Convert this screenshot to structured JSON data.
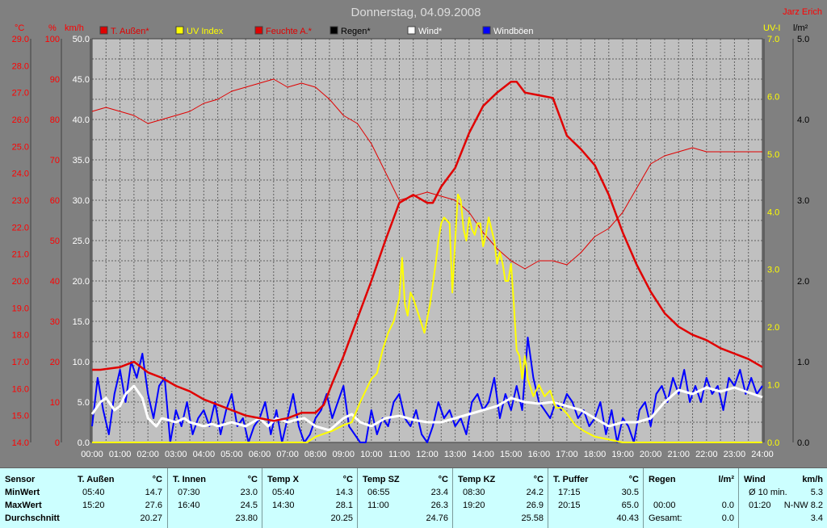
{
  "header": {
    "title": "Donnerstag, 04.09.2008",
    "author": "Jarz Erich"
  },
  "colors": {
    "background": "#808080",
    "plot_bg": "#c0c0c0",
    "temp": "#e00000",
    "uv": "#ffff00",
    "humidity": "#e00000",
    "wind": "#ffffff",
    "gust": "#0000ff",
    "rain": "#000000"
  },
  "axes": {
    "left_temp": {
      "unit": "°C",
      "ticks": [
        "29.0",
        "28.0",
        "27.0",
        "26.0",
        "25.0",
        "24.0",
        "23.0",
        "22.0",
        "21.0",
        "20.0",
        "19.0",
        "18.0",
        "17.0",
        "16.0",
        "15.0",
        "14.0"
      ]
    },
    "left_hum": {
      "unit": "%",
      "ticks": [
        "100",
        "90",
        "80",
        "70",
        "60",
        "50",
        "40",
        "30",
        "20",
        "10",
        "0"
      ]
    },
    "left_wind": {
      "unit": "km/h",
      "ticks": [
        "50.0",
        "45.0",
        "40.0",
        "35.0",
        "30.0",
        "25.0",
        "20.0",
        "15.0",
        "10.0",
        "5.0",
        "0.0"
      ]
    },
    "right_uv": {
      "unit": "UV-I",
      "ticks": [
        "7.0",
        "6.0",
        "5.0",
        "4.0",
        "3.0",
        "2.0",
        "1.0",
        "0.0"
      ]
    },
    "right_rain": {
      "unit": "l/m²",
      "ticks": [
        "5.0",
        "4.0",
        "3.0",
        "2.0",
        "1.0",
        "0.0"
      ]
    },
    "x_ticks": [
      "00:00",
      "01:00",
      "02:00",
      "03:00",
      "04:00",
      "05:00",
      "06:00",
      "07:00",
      "08:00",
      "09:00",
      "10:00",
      "11:00",
      "12:00",
      "13:00",
      "14:00",
      "15:00",
      "16:00",
      "17:00",
      "18:00",
      "19:00",
      "20:00",
      "21:00",
      "22:00",
      "23:00",
      "24:00"
    ]
  },
  "legend": [
    {
      "label": "T. Außen*",
      "color": "#e00000",
      "text_color": "#e00000"
    },
    {
      "label": "UV Index",
      "color": "#ffff00",
      "text_color": "#ffff00"
    },
    {
      "label": "Feuchte A.*",
      "color": "#e00000",
      "text_color": "#e00000"
    },
    {
      "label": "Regen*",
      "color": "#000000",
      "text_color": "#000000"
    },
    {
      "label": "Wind*",
      "color": "#ffffff",
      "text_color": "#ffffff"
    },
    {
      "label": "Windböen",
      "color": "#0000ff",
      "text_color": "#ffffff"
    }
  ],
  "chart_data": {
    "type": "line",
    "title": "Donnerstag, 04.09.2008",
    "x_unit": "hour",
    "xlim": [
      0,
      24
    ],
    "series": [
      {
        "name": "T. Außen*",
        "axis": "°C",
        "ylim": [
          14,
          29
        ],
        "x": [
          0,
          0.3,
          1,
          1.5,
          2,
          2.5,
          3,
          3.5,
          4,
          4.5,
          5,
          5.5,
          6,
          6.5,
          7,
          7.5,
          8,
          8.3,
          8.6,
          9,
          9.5,
          10,
          10.5,
          11,
          11.5,
          12,
          12.2,
          12.5,
          13,
          13.5,
          14,
          14.5,
          15,
          15.2,
          15.5,
          16,
          16.5,
          17,
          17.5,
          18,
          18.5,
          19,
          19.5,
          20,
          20.5,
          21,
          21.5,
          22,
          22.5,
          23,
          23.5,
          24
        ],
        "values": [
          16.7,
          16.7,
          16.8,
          17.0,
          16.6,
          16.4,
          16.1,
          15.9,
          15.6,
          15.4,
          15.2,
          15.0,
          14.9,
          14.8,
          14.9,
          15.1,
          15.1,
          15.4,
          16.2,
          17.2,
          18.6,
          20.0,
          21.5,
          22.9,
          23.2,
          22.9,
          22.9,
          23.5,
          24.2,
          25.5,
          26.5,
          27.0,
          27.4,
          27.4,
          27.0,
          26.9,
          26.8,
          25.4,
          24.9,
          24.3,
          23.2,
          21.8,
          20.6,
          19.6,
          18.8,
          18.3,
          18.0,
          17.8,
          17.5,
          17.3,
          17.1,
          16.8
        ]
      },
      {
        "name": "Feuchte A.*",
        "axis": "%",
        "ylim": [
          0,
          100
        ],
        "x": [
          0,
          0.5,
          1,
          1.5,
          2,
          2.5,
          3,
          3.5,
          4,
          4.5,
          5,
          5.5,
          6,
          6.5,
          7,
          7.5,
          8,
          8.5,
          9,
          9.5,
          10,
          10.5,
          11,
          11.5,
          12,
          12.5,
          13,
          13.5,
          14,
          14.5,
          15,
          15.5,
          16,
          16.5,
          17,
          17.5,
          18,
          18.5,
          19,
          19.5,
          20,
          20.5,
          21,
          21.5,
          22,
          22.5,
          23,
          23.5,
          24
        ],
        "values": [
          82,
          83,
          82,
          81,
          79,
          80,
          81,
          82,
          84,
          85,
          87,
          88,
          89,
          90,
          88,
          89,
          88,
          85,
          81,
          79,
          74,
          67,
          60,
          61,
          62,
          61,
          60,
          57,
          52,
          48,
          45,
          43,
          45,
          45,
          44,
          47,
          51,
          53,
          57,
          63,
          69,
          71,
          72,
          73,
          72,
          72,
          72,
          72,
          72
        ]
      },
      {
        "name": "UV Index",
        "axis": "UV-I",
        "ylim": [
          0,
          7
        ],
        "x": [
          0,
          7.7,
          8,
          8.3,
          8.6,
          9,
          9.3,
          9.6,
          10,
          10.2,
          10.4,
          10.6,
          10.8,
          11,
          11.1,
          11.2,
          11.3,
          11.4,
          11.5,
          11.7,
          11.9,
          12.1,
          12.3,
          12.4,
          12.5,
          12.6,
          12.8,
          12.9,
          13,
          13.1,
          13.2,
          13.3,
          13.4,
          13.5,
          13.6,
          13.7,
          13.8,
          13.9,
          14,
          14.1,
          14.2,
          14.3,
          14.4,
          14.5,
          14.6,
          14.7,
          14.8,
          14.9,
          15,
          15.1,
          15.2,
          15.3,
          15.4,
          15.5,
          15.6,
          15.8,
          16,
          16.2,
          16.4,
          16.6,
          16.8,
          17,
          17.3,
          17.6,
          18,
          18.5,
          19,
          20,
          24
        ],
        "values": [
          0,
          0,
          0.1,
          0.15,
          0.2,
          0.3,
          0.35,
          0.7,
          1.1,
          1.2,
          1.6,
          1.9,
          2.1,
          2.5,
          3.2,
          2.4,
          2.2,
          2.6,
          2.5,
          2.2,
          1.9,
          2.4,
          3.1,
          3.5,
          3.8,
          3.9,
          3.8,
          2.6,
          3.5,
          4.3,
          4.2,
          3.7,
          3.5,
          3.9,
          3.7,
          3.6,
          3.8,
          3.8,
          3.4,
          3.6,
          3.9,
          3.7,
          3.5,
          3.1,
          3.3,
          3.1,
          2.8,
          2.8,
          3.1,
          2.4,
          1.6,
          1.5,
          1.1,
          1.5,
          1.1,
          0.8,
          1.0,
          0.8,
          0.9,
          0.6,
          0.6,
          0.5,
          0.3,
          0.2,
          0.1,
          0.05,
          0,
          0,
          0
        ]
      },
      {
        "name": "Wind*",
        "axis": "km/h",
        "ylim": [
          0,
          50
        ],
        "x": [
          0,
          0.3,
          0.5,
          0.8,
          1,
          1.2,
          1.5,
          1.8,
          2,
          2.3,
          2.5,
          3,
          3.3,
          3.5,
          4,
          4.3,
          4.5,
          5,
          5.5,
          6,
          6.3,
          6.6,
          7,
          7.3,
          7.6,
          8,
          8.5,
          9,
          9.3,
          9.6,
          10,
          10.5,
          11,
          11.5,
          12,
          12.5,
          13,
          13.5,
          14,
          14.5,
          15,
          15.5,
          16,
          16.5,
          17,
          17.5,
          18,
          18.5,
          19,
          19.5,
          20,
          20.5,
          21,
          21.5,
          22,
          22.5,
          23,
          23.5,
          24
        ],
        "values": [
          3.5,
          5,
          5.5,
          4,
          4.5,
          6,
          7,
          5.5,
          3,
          2,
          3,
          2.5,
          3,
          2.5,
          2,
          2.3,
          2,
          2.5,
          2,
          3,
          2,
          3,
          2.5,
          2.8,
          3,
          2,
          1.5,
          3,
          3.5,
          2.5,
          2,
          3,
          3.3,
          2.8,
          2.5,
          2.5,
          3,
          3.5,
          4,
          4.5,
          5.5,
          5,
          4.8,
          5,
          4.5,
          4,
          3,
          2,
          2.5,
          2.5,
          3,
          5,
          6.5,
          6,
          6.8,
          6.3,
          6.8,
          6.2,
          5.6
        ]
      },
      {
        "name": "Windböen",
        "axis": "km/h",
        "ylim": [
          0,
          50
        ],
        "x": [
          0,
          0.2,
          0.4,
          0.6,
          0.8,
          1,
          1.2,
          1.4,
          1.6,
          1.8,
          2,
          2.2,
          2.4,
          2.6,
          2.8,
          3,
          3.2,
          3.4,
          3.6,
          3.8,
          4,
          4.2,
          4.4,
          4.6,
          4.8,
          5,
          5.2,
          5.4,
          5.6,
          5.8,
          6,
          6.2,
          6.4,
          6.6,
          6.8,
          7,
          7.2,
          7.4,
          7.6,
          7.8,
          8,
          8.2,
          8.4,
          8.6,
          8.8,
          9,
          9.2,
          9.4,
          9.6,
          9.8,
          10,
          10.2,
          10.4,
          10.6,
          10.8,
          11,
          11.2,
          11.4,
          11.6,
          11.8,
          12,
          12.2,
          12.4,
          12.6,
          12.8,
          13,
          13.2,
          13.4,
          13.6,
          13.8,
          14,
          14.2,
          14.4,
          14.6,
          14.8,
          15,
          15.2,
          15.4,
          15.6,
          15.8,
          16,
          16.2,
          16.4,
          16.6,
          16.8,
          17,
          17.2,
          17.4,
          17.6,
          17.8,
          18,
          18.2,
          18.4,
          18.6,
          18.8,
          19,
          19.2,
          19.4,
          19.6,
          19.8,
          20,
          20.2,
          20.4,
          20.6,
          20.8,
          21,
          21.2,
          21.4,
          21.6,
          21.8,
          22,
          22.2,
          22.4,
          22.6,
          22.8,
          23,
          23.2,
          23.4,
          23.6,
          23.8,
          24
        ],
        "values": [
          2,
          8,
          4,
          1,
          6,
          9,
          5,
          10,
          8,
          11,
          6,
          3,
          7,
          8,
          0,
          4,
          2,
          5,
          1,
          3,
          4,
          2,
          5,
          1,
          4,
          6,
          2,
          3,
          0,
          2,
          3,
          5,
          1,
          4,
          0,
          3,
          6,
          2,
          0,
          1,
          3,
          4,
          6,
          3,
          5,
          7,
          2,
          1,
          0,
          0,
          4,
          1,
          3,
          2,
          5,
          6,
          3,
          2,
          4,
          1,
          0,
          2,
          5,
          3,
          4,
          2,
          3,
          1,
          5,
          6,
          4,
          5,
          8,
          3,
          6,
          4,
          7,
          4,
          13,
          8,
          5,
          4,
          3,
          5,
          4,
          6,
          5,
          3,
          4,
          2,
          3,
          5,
          1,
          4,
          0,
          3,
          2,
          0,
          4,
          5,
          2,
          6,
          7,
          5,
          8,
          6,
          9,
          5,
          7,
          5,
          8,
          6,
          7,
          4,
          8,
          7,
          9,
          6,
          8,
          6,
          7
        ]
      }
    ]
  },
  "stats": {
    "labels": {
      "title": "Sensor",
      "min": "MinWert",
      "max": "MaxWert",
      "avg": "Durchschnitt"
    },
    "columns": [
      {
        "name": "T. Außen",
        "unit": "°C",
        "min_time": "05:40",
        "min": "14.7",
        "max_time": "15:20",
        "max": "27.6",
        "avg": "20.27"
      },
      {
        "name": "T. Innen",
        "unit": "°C",
        "min_time": "07:30",
        "min": "23.0",
        "max_time": "16:40",
        "max": "24.5",
        "avg": "23.80"
      },
      {
        "name": "Temp X",
        "unit": "°C",
        "min_time": "05:40",
        "min": "14.3",
        "max_time": "14:30",
        "max": "28.1",
        "avg": "20.25"
      },
      {
        "name": "Temp SZ",
        "unit": "°C",
        "min_time": "06:55",
        "min": "23.4",
        "max_time": "11:00",
        "max": "26.3",
        "avg": "24.76"
      },
      {
        "name": "Temp KZ",
        "unit": "°C",
        "min_time": "08:30",
        "min": "24.2",
        "max_time": "19:20",
        "max": "26.9",
        "avg": "25.58"
      },
      {
        "name": "T. Puffer",
        "unit": "°C",
        "min_time": "17:15",
        "min": "30.5",
        "max_time": "20:15",
        "max": "65.0",
        "avg": "40.43"
      },
      {
        "name": "Regen",
        "unit": "l/m²",
        "min_time": "",
        "min": "",
        "max_time": "00:00",
        "max": "0.0",
        "avg_label": "Gesamt:",
        "avg": "0.0"
      },
      {
        "name": "Wind",
        "unit": "km/h",
        "min_time": "Ø 10 min.",
        "min": "5.3",
        "max_time": "01:20",
        "max": "N-NW 8.2",
        "avg": "3.4"
      }
    ]
  }
}
